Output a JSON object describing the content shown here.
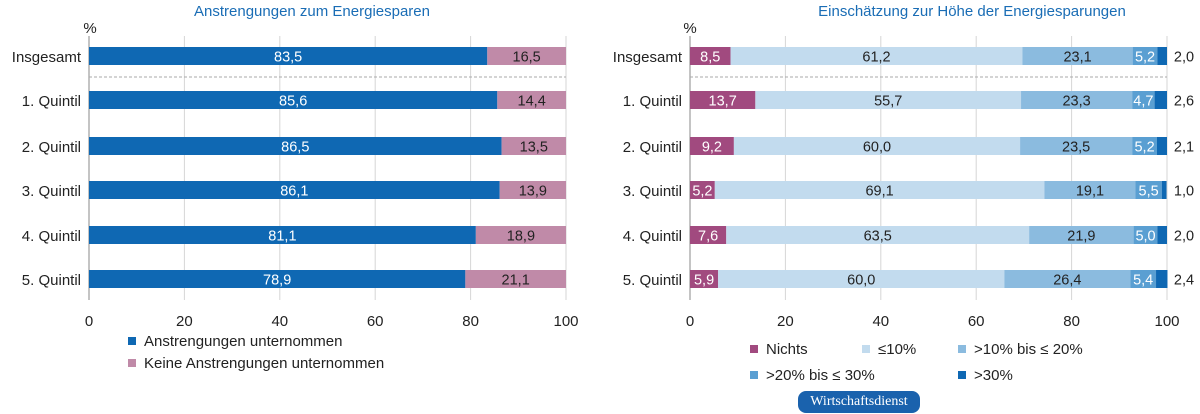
{
  "chart_data": [
    {
      "type": "bar",
      "stacked": true,
      "orientation": "horizontal",
      "title": "Anstrengungen zum Energiesparen",
      "unit_label": "%",
      "categories": [
        "Insgesamt",
        "1. Quintil",
        "2. Quintil",
        "3. Quintil",
        "4. Quintil",
        "5. Quintil"
      ],
      "series": [
        {
          "name": "Anstrengungen unternommen",
          "color": "#0f68b3",
          "label_color": "#ffffff",
          "values": [
            83.5,
            85.6,
            86.5,
            86.1,
            81.1,
            78.9
          ],
          "labels": [
            "83,5",
            "85,6",
            "86,5",
            "86,1",
            "81,1",
            "78,9"
          ]
        },
        {
          "name": "Keine Anstrengungen unternommen",
          "color": "#c08aa8",
          "label_color": "#222222",
          "values": [
            16.5,
            14.4,
            13.5,
            13.9,
            18.9,
            21.1
          ],
          "labels": [
            "16,5",
            "14,4",
            "13,5",
            "13,9",
            "18,9",
            "21,1"
          ]
        }
      ],
      "xlim": [
        0,
        100
      ],
      "xticks": [
        "0",
        "20",
        "40",
        "60",
        "80",
        "100"
      ],
      "grid": true,
      "legend": "bottom"
    },
    {
      "type": "bar",
      "stacked": true,
      "orientation": "horizontal",
      "title": "Einschätzung zur Höhe der Energiesparungen",
      "unit_label": "%",
      "categories": [
        "Insgesamt",
        "1. Quintil",
        "2. Quintil",
        "3. Quintil",
        "4. Quintil",
        "5. Quintil"
      ],
      "series": [
        {
          "name": "Nichts",
          "color": "#a14a7f",
          "label_color": "#ffffff",
          "values": [
            8.5,
            13.7,
            9.2,
            5.2,
            7.6,
            5.9
          ],
          "labels": [
            "8,5",
            "13,7",
            "9,2",
            "5,2",
            "7,6",
            "5,9"
          ]
        },
        {
          "name": "≤10%",
          "color": "#c2dbee",
          "label_color": "#222222",
          "values": [
            61.2,
            55.7,
            60.0,
            69.1,
            63.5,
            60.0
          ],
          "labels": [
            "61,2",
            "55,7",
            "60,0",
            "69,1",
            "63,5",
            "60,0"
          ]
        },
        {
          "name": ">10% bis ≤ 20%",
          "color": "#8bbbdf",
          "label_color": "#222222",
          "values": [
            23.1,
            23.3,
            23.5,
            19.1,
            21.9,
            26.4
          ],
          "labels": [
            "23,1",
            "23,3",
            "23,5",
            "19,1",
            "21,9",
            "26,4"
          ]
        },
        {
          "name": ">20% bis ≤ 30%",
          "color": "#5a9fd2",
          "label_color": "#ffffff",
          "values": [
            5.2,
            4.7,
            5.2,
            5.5,
            5.0,
            5.4
          ],
          "labels": [
            "5,2",
            "4,7",
            "5,2",
            "5,5",
            "5,0",
            "5,4"
          ]
        },
        {
          "name": ">30%",
          "color": "#0f68b3",
          "label_color": "#222222",
          "values": [
            2.0,
            2.6,
            2.1,
            1.0,
            2.0,
            2.4
          ],
          "labels": [
            "2,0",
            "2,6",
            "2,1",
            "1,0",
            "2,0",
            "2,4"
          ],
          "label_position": "outside"
        }
      ],
      "xlim": [
        0,
        100
      ],
      "xticks": [
        "0",
        "20",
        "40",
        "60",
        "80",
        "100"
      ],
      "grid": true,
      "legend": "bottom"
    }
  ],
  "source_badge": "Wirtschaftsdienst"
}
